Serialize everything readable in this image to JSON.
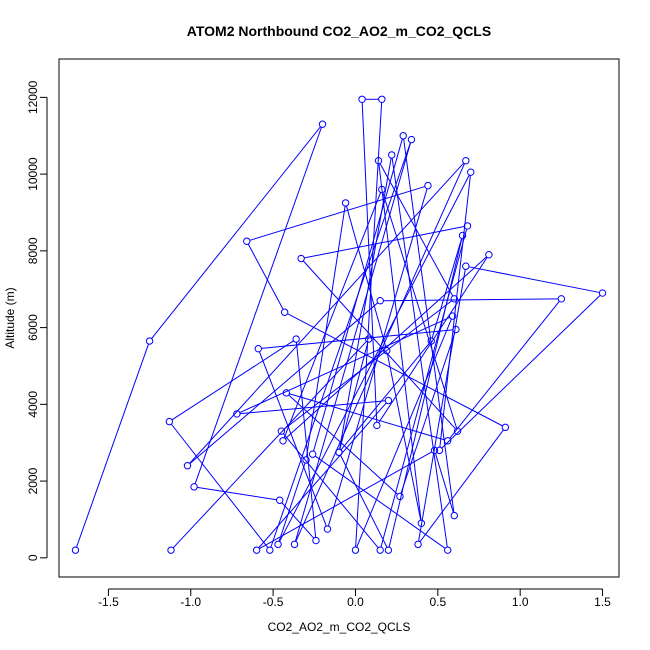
{
  "chart_data": {
    "type": "line",
    "title": "ATOM2 Northbound CO2_AO2_m_CO2_QCLS",
    "xlabel": "CO2_AO2_m_CO2_QCLS",
    "ylabel": "Altitude (m)",
    "xlim": [
      -1.8,
      1.6
    ],
    "ylim": [
      -500,
      13000
    ],
    "xticks": [
      -1.5,
      -1.0,
      -0.5,
      0.0,
      0.5,
      1.0,
      1.5
    ],
    "xtick_labels": [
      "-1.5",
      "-1.0",
      "-0.5",
      "0.0",
      "0.5",
      "1.0",
      "1.5"
    ],
    "yticks": [
      0,
      2000,
      4000,
      6000,
      8000,
      10000,
      12000
    ],
    "ytick_labels": [
      "0",
      "2000",
      "4000",
      "6000",
      "8000",
      "10000",
      "12000"
    ],
    "grid": false,
    "series": [
      {
        "color": "#0000ff",
        "marker": "open-circle",
        "points": [
          {
            "x": -1.7,
            "y": 200
          },
          {
            "x": -1.25,
            "y": 5650
          },
          {
            "x": -0.2,
            "y": 11300
          },
          {
            "x": -0.98,
            "y": 1850
          },
          {
            "x": -0.46,
            "y": 1500
          },
          {
            "x": -0.24,
            "y": 450
          },
          {
            "x": -0.36,
            "y": 5700
          },
          {
            "x": -1.13,
            "y": 3550
          },
          {
            "x": -0.52,
            "y": 200
          },
          {
            "x": 0.34,
            "y": 10900
          },
          {
            "x": -0.37,
            "y": 350
          },
          {
            "x": 0.67,
            "y": 10350
          },
          {
            "x": -1.02,
            "y": 2400
          },
          {
            "x": 0.15,
            "y": 6700
          },
          {
            "x": 1.25,
            "y": 6750
          },
          {
            "x": 0.56,
            "y": 3050
          },
          {
            "x": -0.42,
            "y": 4300
          },
          {
            "x": 0.27,
            "y": 1600
          },
          {
            "x": 0.61,
            "y": 5950
          },
          {
            "x": -0.59,
            "y": 5450
          },
          {
            "x": -0.17,
            "y": 750
          },
          {
            "x": 0.44,
            "y": 9700
          },
          {
            "x": -0.66,
            "y": 8250
          },
          {
            "x": -0.43,
            "y": 6400
          },
          {
            "x": 0.91,
            "y": 3400
          },
          {
            "x": 0.38,
            "y": 350
          },
          {
            "x": 0.67,
            "y": 7600
          },
          {
            "x": 1.5,
            "y": 6900
          },
          {
            "x": 0.51,
            "y": 2800
          },
          {
            "x": 0.7,
            "y": 10050
          },
          {
            "x": -0.47,
            "y": 350
          },
          {
            "x": -0.3,
            "y": 2550
          },
          {
            "x": -0.06,
            "y": 9250
          },
          {
            "x": 0.19,
            "y": 5400
          },
          {
            "x": 0.4,
            "y": 900
          },
          {
            "x": 0.14,
            "y": 10350
          },
          {
            "x": 0.6,
            "y": 6750
          },
          {
            "x": -0.45,
            "y": 3300
          },
          {
            "x": 0.15,
            "y": 200
          },
          {
            "x": 0.68,
            "y": 8650
          },
          {
            "x": -0.33,
            "y": 7800
          },
          {
            "x": 0.62,
            "y": 3300
          },
          {
            "x": 0.16,
            "y": 9600
          },
          {
            "x": -0.44,
            "y": 3050
          },
          {
            "x": 0.81,
            "y": 7900
          },
          {
            "x": 0.13,
            "y": 3450
          },
          {
            "x": 0.04,
            "y": 11950
          },
          {
            "x": 0.16,
            "y": 11950
          },
          {
            "x": 0.0,
            "y": 200
          },
          {
            "x": 0.59,
            "y": 6300
          },
          {
            "x": -0.72,
            "y": 3750
          },
          {
            "x": 0.2,
            "y": 4100
          },
          {
            "x": -0.6,
            "y": 200
          },
          {
            "x": 0.48,
            "y": 2800
          },
          {
            "x": 0.6,
            "y": 1100
          },
          {
            "x": 0.29,
            "y": 11000
          },
          {
            "x": -0.26,
            "y": 2700
          },
          {
            "x": 0.56,
            "y": 200
          },
          {
            "x": 0.22,
            "y": 10500
          },
          {
            "x": -0.1,
            "y": 2750
          },
          {
            "x": 0.2,
            "y": 200
          },
          {
            "x": 0.65,
            "y": 8400
          },
          {
            "x": 0.46,
            "y": 5650
          },
          {
            "x": -0.1,
            "y": 2750
          },
          {
            "x": 0.08,
            "y": 5700
          },
          {
            "x": -1.12,
            "y": 200
          }
        ]
      }
    ]
  }
}
